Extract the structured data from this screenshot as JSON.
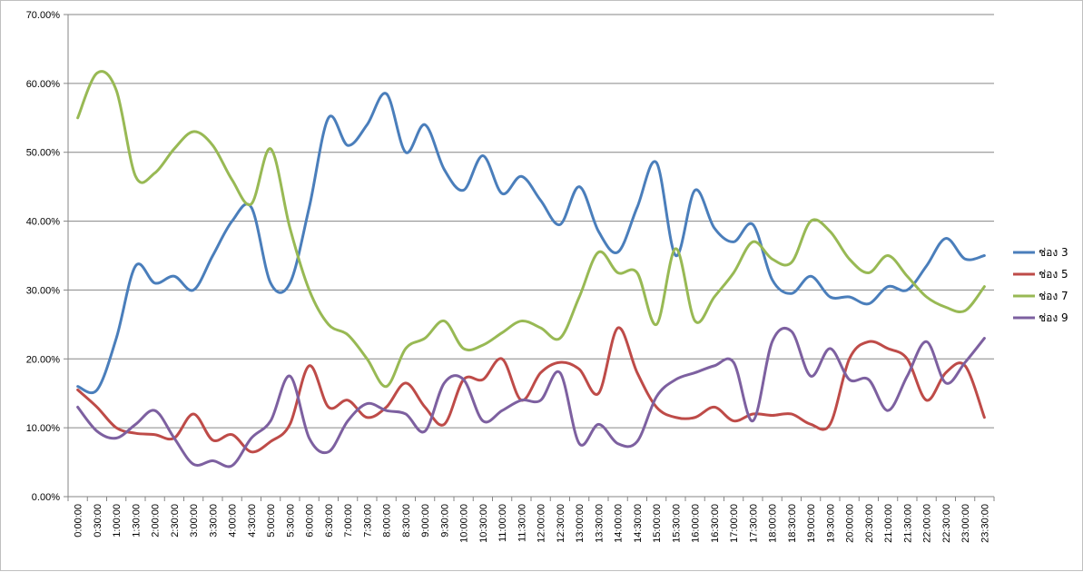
{
  "chart_data": {
    "type": "line",
    "title": "",
    "xlabel": "",
    "ylabel": "",
    "ylim": [
      0,
      70
    ],
    "ytick_labels": [
      "0.00%",
      "10.00%",
      "20.00%",
      "30.00%",
      "40.00%",
      "50.00%",
      "60.00%",
      "70.00%"
    ],
    "grid": "horizontal",
    "legend_position": "right",
    "x": [
      "0:00:00",
      "0:30:00",
      "1:00:00",
      "1:30:00",
      "2:00:00",
      "2:30:00",
      "3:00:00",
      "3:30:00",
      "4:00:00",
      "4:30:00",
      "5:00:00",
      "5:30:00",
      "6:00:00",
      "6:30:00",
      "7:00:00",
      "7:30:00",
      "8:00:00",
      "8:30:00",
      "9:00:00",
      "9:30:00",
      "10:00:00",
      "10:30:00",
      "11:00:00",
      "11:30:00",
      "12:00:00",
      "12:30:00",
      "13:00:00",
      "13:30:00",
      "14:00:00",
      "14:30:00",
      "15:00:00",
      "15:30:00",
      "16:00:00",
      "16:30:00",
      "17:00:00",
      "17:30:00",
      "18:00:00",
      "18:30:00",
      "19:00:00",
      "19:30:00",
      "20:00:00",
      "20:30:00",
      "21:00:00",
      "21:30:00",
      "22:00:00",
      "22:30:00",
      "23:00:00",
      "23:30:00"
    ],
    "series": [
      {
        "name": "ช่อง 3",
        "color": "#4a7ebb",
        "values": [
          16,
          15.5,
          23,
          33.5,
          31,
          32,
          30,
          35,
          40,
          42,
          31,
          31,
          42,
          55,
          51,
          54,
          58.5,
          50,
          54,
          47.5,
          44.5,
          49.5,
          44,
          46.5,
          43,
          39.5,
          45,
          38.5,
          35.5,
          42,
          48.5,
          35,
          44.5,
          39,
          37,
          39.5,
          31.5,
          29.5,
          32,
          29,
          29,
          28,
          30.5,
          30,
          33.5,
          37.5,
          34.5,
          35
        ]
      },
      {
        "name": "ช่อง 5",
        "color": "#be4b48",
        "values": [
          15.5,
          13,
          10,
          9.2,
          9,
          8.5,
          12,
          8.2,
          9,
          6.5,
          8,
          10.5,
          19,
          13,
          14,
          11.5,
          13,
          16.5,
          13,
          10.5,
          17,
          17,
          20,
          14,
          18,
          19.5,
          18.5,
          15,
          24.5,
          18,
          13,
          11.5,
          11.5,
          13,
          11,
          12,
          11.8,
          12,
          10.5,
          10.5,
          20,
          22.5,
          21.5,
          20,
          14,
          18,
          19,
          11.5
        ]
      },
      {
        "name": "ช่อง 7",
        "color": "#98b954",
        "values": [
          55,
          61.5,
          59,
          46.5,
          47,
          50.5,
          53,
          51,
          46,
          42.5,
          50.5,
          39,
          30,
          25,
          23.5,
          20,
          16,
          21.5,
          23,
          25.5,
          21.5,
          22,
          23.8,
          25.5,
          24.5,
          23,
          29,
          35.5,
          32.5,
          32.5,
          25,
          36,
          25.5,
          29,
          32.5,
          37,
          34.5,
          34,
          40,
          38.5,
          34.5,
          32.5,
          35,
          32,
          29,
          27.5,
          27,
          30.5
        ]
      },
      {
        "name": "ช่อง 9",
        "color": "#7d60a0",
        "values": [
          13,
          9.5,
          8.5,
          10.5,
          12.5,
          8.5,
          4.7,
          5.2,
          4.5,
          8.5,
          11,
          17.5,
          8.5,
          6.5,
          11,
          13.5,
          12.5,
          12,
          9.5,
          16.5,
          17,
          11,
          12.5,
          14,
          14,
          18,
          7.7,
          10.5,
          7.7,
          8,
          14.5,
          17,
          18,
          19,
          19.5,
          11,
          22.5,
          24,
          17.5,
          21.5,
          17,
          17,
          12.5,
          17.5,
          22.5,
          16.5,
          19.5,
          23
        ]
      }
    ]
  }
}
